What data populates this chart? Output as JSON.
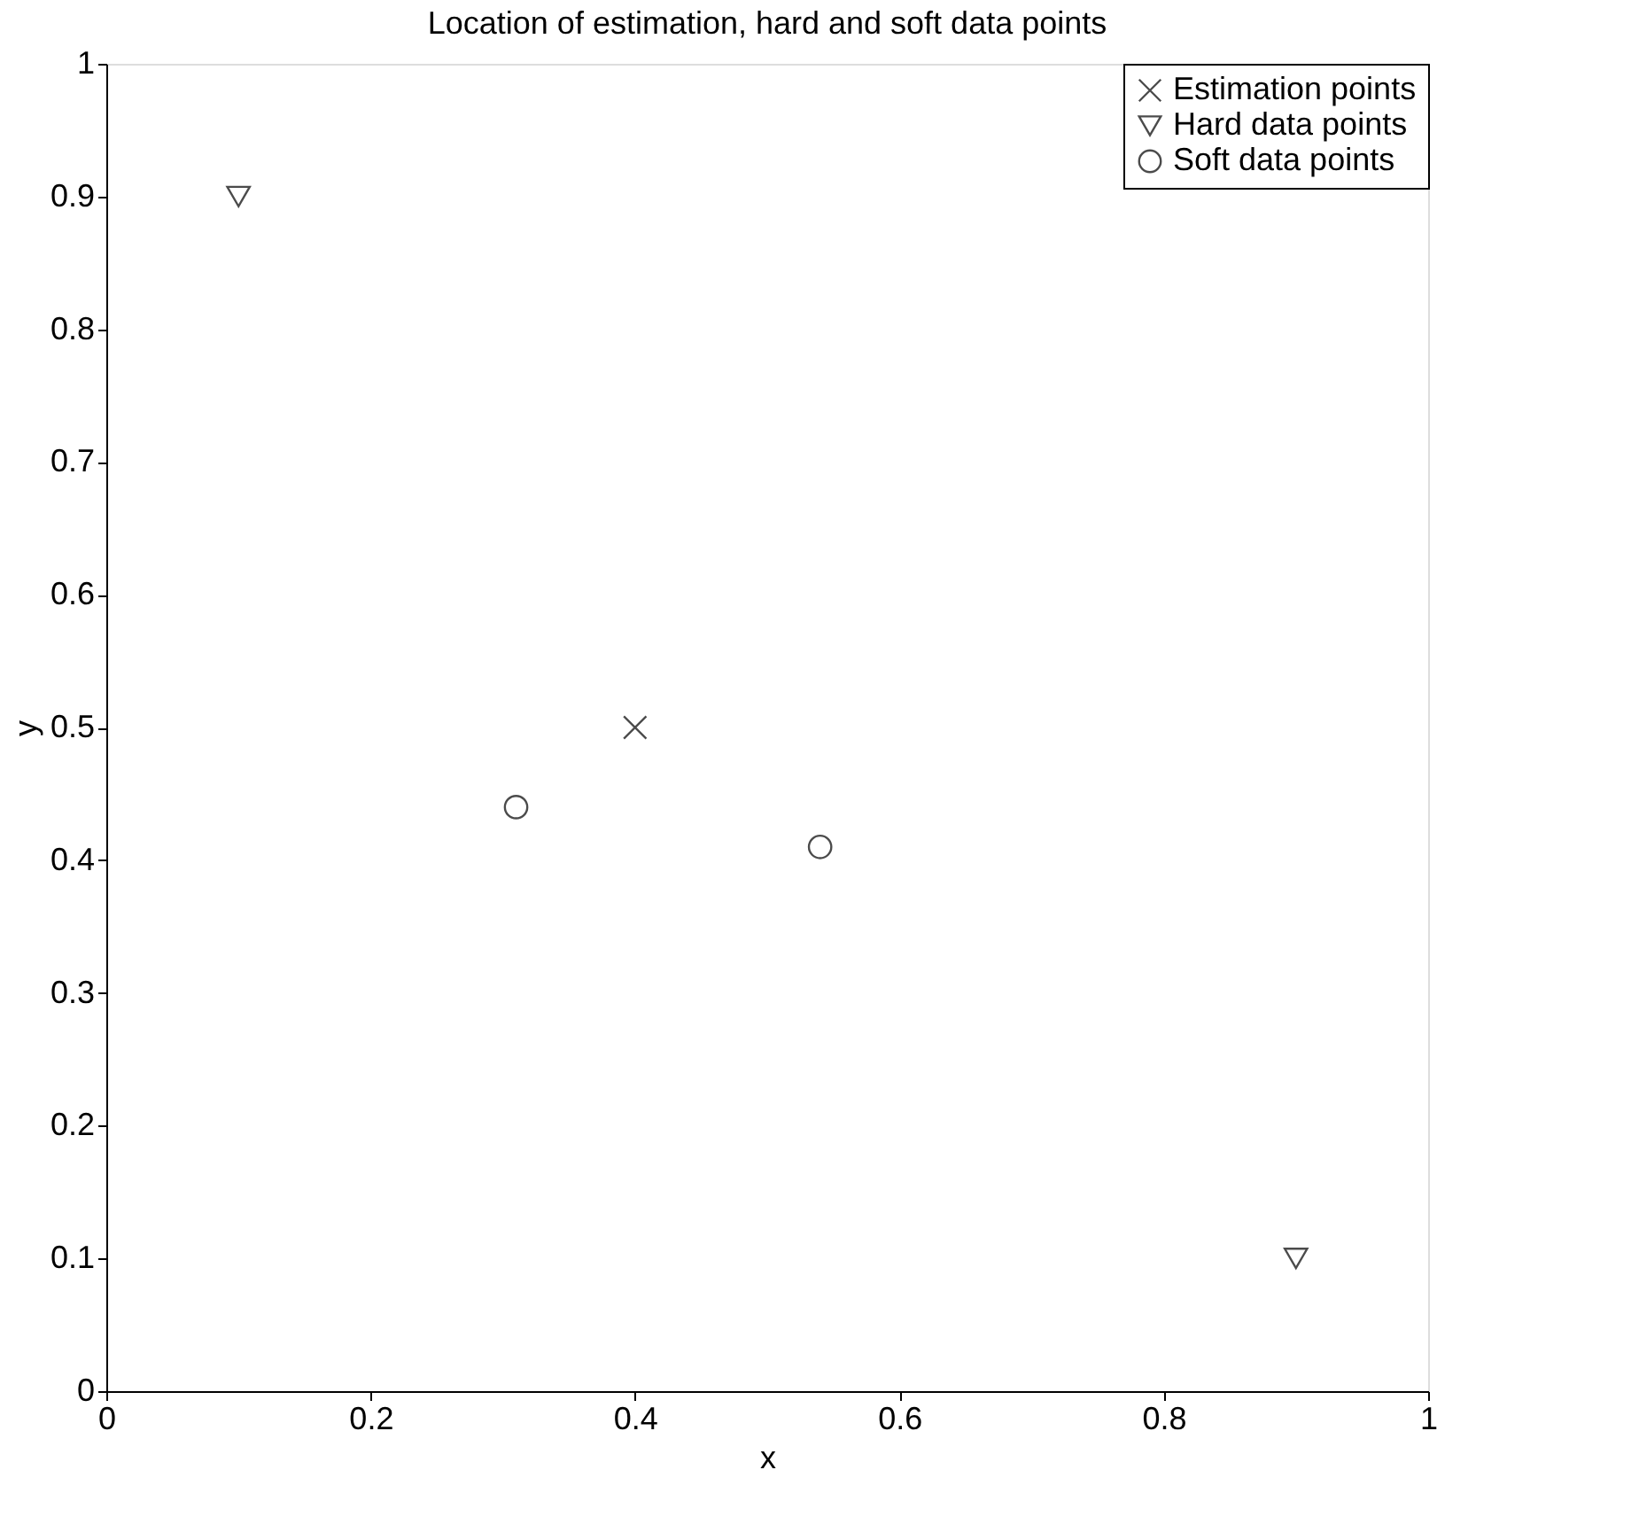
{
  "chart_data": {
    "type": "scatter",
    "title": "Location of estimation, hard and soft data points",
    "xlabel": "x",
    "ylabel": "y",
    "xlim": [
      0,
      1
    ],
    "ylim": [
      0,
      1
    ],
    "xticks": [
      0,
      0.2,
      0.4,
      0.6,
      0.8,
      1
    ],
    "yticks": [
      0,
      0.1,
      0.2,
      0.3,
      0.4,
      0.5,
      0.6,
      0.7,
      0.8,
      0.9,
      1
    ],
    "grid": false,
    "legend": "top right",
    "series": [
      {
        "name": "Estimation points",
        "color": "#000000",
        "marker": "cross",
        "x": [
          0.4
        ],
        "values": [
          0.5
        ]
      },
      {
        "name": "Hard data points",
        "color": "#000000",
        "marker": "triangle",
        "x": [
          0.1,
          0.9
        ],
        "values": [
          0.9,
          0.1
        ]
      },
      {
        "name": "Soft data points",
        "color": "#000000",
        "marker": "circle",
        "x": [
          0.31,
          0.54
        ],
        "values": [
          0.44,
          0.41
        ]
      }
    ]
  }
}
